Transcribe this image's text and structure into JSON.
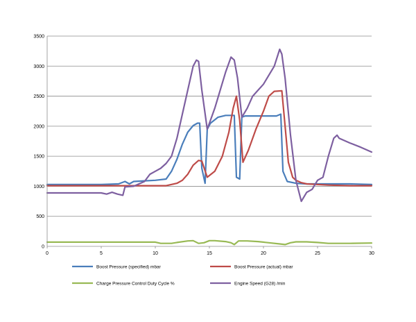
{
  "chart_data": {
    "type": "line",
    "title": "",
    "xlabel": "",
    "ylabel": "",
    "xlim": [
      0,
      30
    ],
    "ylim": [
      0,
      3500
    ],
    "xticks": [
      "0",
      "5",
      "10",
      "15",
      "20",
      "25",
      "30"
    ],
    "yticks": [
      "0",
      "500",
      "1000",
      "1500",
      "2000",
      "2500",
      "3000",
      "3500"
    ],
    "grid": "horizontal",
    "legend_position": "bottom",
    "series": [
      {
        "name": "Boost Pressure (specified)  mbar",
        "color": "#4a7ebb",
        "points": [
          [
            0,
            1030
          ],
          [
            5,
            1030
          ],
          [
            6.6,
            1040
          ],
          [
            7.2,
            1080
          ],
          [
            7.6,
            1040
          ],
          [
            8,
            1080
          ],
          [
            9,
            1090
          ],
          [
            10,
            1100
          ],
          [
            11,
            1120
          ],
          [
            11.5,
            1250
          ],
          [
            12,
            1450
          ],
          [
            12.5,
            1700
          ],
          [
            13,
            1900
          ],
          [
            13.5,
            2010
          ],
          [
            13.9,
            2050
          ],
          [
            14.1,
            2050
          ],
          [
            14.3,
            1300
          ],
          [
            14.6,
            1050
          ],
          [
            14.8,
            1950
          ],
          [
            15.1,
            2050
          ],
          [
            15.8,
            2150
          ],
          [
            16.5,
            2180
          ],
          [
            17.3,
            2180
          ],
          [
            17.5,
            1150
          ],
          [
            17.8,
            1120
          ],
          [
            18,
            2150
          ],
          [
            18.3,
            2170
          ],
          [
            20,
            2170
          ],
          [
            21.2,
            2170
          ],
          [
            21.6,
            2200
          ],
          [
            21.8,
            1250
          ],
          [
            22.2,
            1080
          ],
          [
            23,
            1050
          ],
          [
            24,
            1040
          ],
          [
            25,
            1040
          ],
          [
            26,
            1040
          ],
          [
            28,
            1040
          ],
          [
            30,
            1030
          ]
        ]
      },
      {
        "name": "Boost Pressure (actual)  mbar",
        "color": "#be4b48",
        "points": [
          [
            0,
            1010
          ],
          [
            5,
            1010
          ],
          [
            10,
            1010
          ],
          [
            11,
            1010
          ],
          [
            12,
            1050
          ],
          [
            12.5,
            1100
          ],
          [
            13,
            1200
          ],
          [
            13.5,
            1350
          ],
          [
            14,
            1430
          ],
          [
            14.3,
            1420
          ],
          [
            14.8,
            1150
          ],
          [
            15.5,
            1250
          ],
          [
            16.2,
            1500
          ],
          [
            16.8,
            1900
          ],
          [
            17.2,
            2300
          ],
          [
            17.5,
            2500
          ],
          [
            17.8,
            2100
          ],
          [
            18.1,
            1400
          ],
          [
            18.6,
            1600
          ],
          [
            19.3,
            1950
          ],
          [
            20,
            2250
          ],
          [
            20.5,
            2500
          ],
          [
            21,
            2580
          ],
          [
            21.7,
            2590
          ],
          [
            22,
            2000
          ],
          [
            22.3,
            1400
          ],
          [
            22.7,
            1150
          ],
          [
            23,
            1100
          ],
          [
            23.5,
            1060
          ],
          [
            24,
            1040
          ],
          [
            26,
            1020
          ],
          [
            28,
            1010
          ],
          [
            30,
            1010
          ]
        ]
      },
      {
        "name": "Charge Pressure Control Duty Cycle  %",
        "color": "#98b954",
        "points": [
          [
            0,
            70
          ],
          [
            5,
            70
          ],
          [
            9,
            70
          ],
          [
            10,
            70
          ],
          [
            10.5,
            50
          ],
          [
            11.5,
            50
          ],
          [
            12,
            65
          ],
          [
            13,
            90
          ],
          [
            13.5,
            95
          ],
          [
            14,
            50
          ],
          [
            14.5,
            60
          ],
          [
            15,
            95
          ],
          [
            15.5,
            95
          ],
          [
            16.5,
            80
          ],
          [
            17,
            60
          ],
          [
            17.3,
            30
          ],
          [
            17.7,
            90
          ],
          [
            18.5,
            90
          ],
          [
            19.5,
            80
          ],
          [
            20.5,
            60
          ],
          [
            21.5,
            40
          ],
          [
            22,
            30
          ],
          [
            22.5,
            60
          ],
          [
            23,
            75
          ],
          [
            24,
            75
          ],
          [
            25,
            65
          ],
          [
            26,
            50
          ],
          [
            28,
            50
          ],
          [
            30,
            55
          ]
        ]
      },
      {
        "name": "Engine Speed (G28)  /min",
        "color": "#7d5fa0",
        "points": [
          [
            0,
            890
          ],
          [
            5,
            890
          ],
          [
            5.5,
            870
          ],
          [
            6,
            900
          ],
          [
            6.5,
            870
          ],
          [
            7,
            850
          ],
          [
            7.2,
            990
          ],
          [
            8,
            1000
          ],
          [
            9,
            1080
          ],
          [
            9.5,
            1200
          ],
          [
            10,
            1250
          ],
          [
            10.5,
            1300
          ],
          [
            11,
            1380
          ],
          [
            11.5,
            1500
          ],
          [
            12,
            1800
          ],
          [
            12.5,
            2200
          ],
          [
            13,
            2600
          ],
          [
            13.5,
            3000
          ],
          [
            13.8,
            3100
          ],
          [
            14,
            3080
          ],
          [
            14.3,
            2600
          ],
          [
            14.8,
            1950
          ],
          [
            15.5,
            2300
          ],
          [
            16,
            2600
          ],
          [
            16.5,
            2900
          ],
          [
            17,
            3150
          ],
          [
            17.3,
            3100
          ],
          [
            17.6,
            2800
          ],
          [
            18,
            2150
          ],
          [
            18.5,
            2300
          ],
          [
            19,
            2500
          ],
          [
            20,
            2700
          ],
          [
            21,
            3000
          ],
          [
            21.5,
            3280
          ],
          [
            21.7,
            3200
          ],
          [
            22,
            2800
          ],
          [
            22.5,
            1850
          ],
          [
            23,
            1100
          ],
          [
            23.5,
            750
          ],
          [
            24,
            900
          ],
          [
            24.5,
            950
          ],
          [
            25,
            1100
          ],
          [
            25.5,
            1150
          ],
          [
            26,
            1500
          ],
          [
            26.5,
            1800
          ],
          [
            26.8,
            1850
          ],
          [
            27,
            1800
          ],
          [
            28,
            1720
          ],
          [
            29,
            1650
          ],
          [
            30,
            1570
          ]
        ]
      }
    ]
  }
}
